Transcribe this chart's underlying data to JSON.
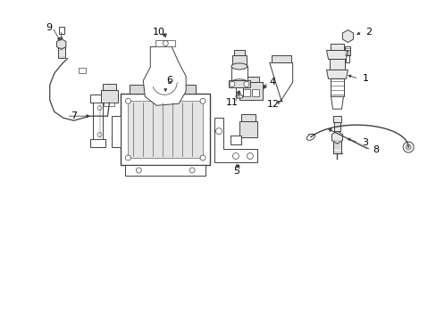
{
  "background_color": "#ffffff",
  "line_color": "#404040",
  "label_color": "#000000",
  "figsize": [
    4.89,
    3.6
  ],
  "dpi": 100,
  "lw": 0.7
}
